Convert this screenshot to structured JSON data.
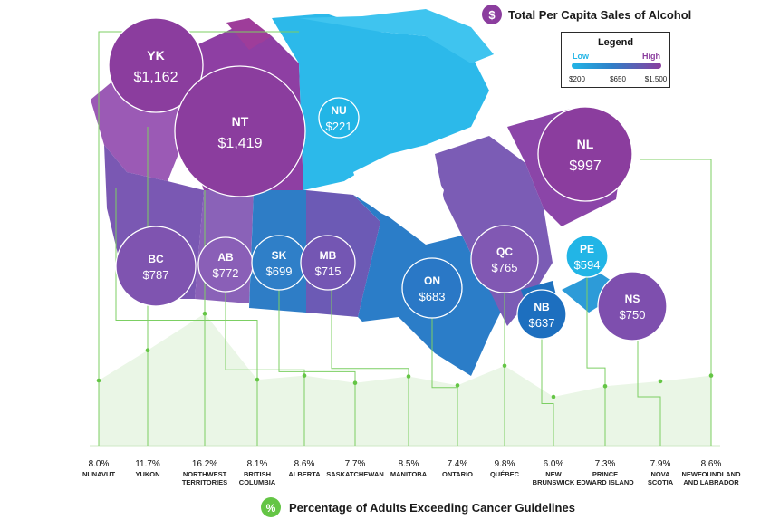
{
  "colors": {
    "low": "#22b5e6",
    "mid": "#2f7fc8",
    "high": "#8b3d9e",
    "green": "#64c545",
    "line_green": "#7ccf63",
    "area_fill": "#eaf6e6"
  },
  "top_title": {
    "icon": "$",
    "text": "Total Per Capita Sales of Alcohol"
  },
  "bottom_title": {
    "icon": "%",
    "text": "Percentage of Adults Exceeding Cancer Guidelines"
  },
  "legend": {
    "title": "Legend",
    "low_label": "Low",
    "high_label": "High",
    "ticks": [
      "$200",
      "$650",
      "$1,500"
    ]
  },
  "chart_data": [
    {
      "type": "bubble-map",
      "title": "Total Per Capita Sales of Alcohol",
      "unit": "$ per capita",
      "regions": [
        {
          "code": "YK",
          "value": 1162,
          "label": "$1,162"
        },
        {
          "code": "NT",
          "value": 1419,
          "label": "$1,419"
        },
        {
          "code": "NU",
          "value": 221,
          "label": "$221"
        },
        {
          "code": "NL",
          "value": 997,
          "label": "$997"
        },
        {
          "code": "BC",
          "value": 787,
          "label": "$787"
        },
        {
          "code": "AB",
          "value": 772,
          "label": "$772"
        },
        {
          "code": "SK",
          "value": 699,
          "label": "$699"
        },
        {
          "code": "MB",
          "value": 715,
          "label": "$715"
        },
        {
          "code": "ON",
          "value": 683,
          "label": "$683"
        },
        {
          "code": "QC",
          "value": 765,
          "label": "$765"
        },
        {
          "code": "PE",
          "value": 594,
          "label": "$594"
        },
        {
          "code": "NB",
          "value": 637,
          "label": "$637"
        },
        {
          "code": "NS",
          "value": 750,
          "label": "$750"
        }
      ]
    },
    {
      "type": "area",
      "title": "Percentage of Adults Exceeding Cancer Guidelines",
      "unit": "%",
      "categories": [
        "NUNAVUT",
        "YUKON",
        "NORTHWEST TERRITORIES",
        "BRITISH COLUMBIA",
        "ALBERTA",
        "SASKATCHEWAN",
        "MANITOBA",
        "ONTARIO",
        "QUÉBEC",
        "NEW BRUNSWICK",
        "PRINCE EDWARD ISLAND",
        "NOVA SCOTIA",
        "NEWFOUNDLAND AND LABRADOR"
      ],
      "category_lines": [
        [
          "NUNAVUT"
        ],
        [
          "YUKON"
        ],
        [
          "NORTHWEST",
          "TERRITORIES"
        ],
        [
          "BRITISH",
          "COLUMBIA"
        ],
        [
          "ALBERTA"
        ],
        [
          "SASKATCHEWAN"
        ],
        [
          "MANITOBA"
        ],
        [
          "ONTARIO"
        ],
        [
          "QUÉBEC"
        ],
        [
          "NEW",
          "BRUNSWICK"
        ],
        [
          "PRINCE",
          "EDWARD ISLAND"
        ],
        [
          "NOVA",
          "SCOTIA"
        ],
        [
          "NEWFOUNDLAND",
          "AND LABRADOR"
        ]
      ],
      "values": [
        8.0,
        11.7,
        16.2,
        8.1,
        8.6,
        7.7,
        8.5,
        7.4,
        9.8,
        6.0,
        7.3,
        7.9,
        8.6
      ],
      "value_labels": [
        "8.0%",
        "11.7%",
        "16.2%",
        "8.1%",
        "8.6%",
        "7.7%",
        "8.5%",
        "7.4%",
        "9.8%",
        "6.0%",
        "7.3%",
        "7.9%",
        "8.6%"
      ],
      "links": [
        "NU",
        "YK",
        "NT",
        "BC",
        "AB",
        "SK",
        "MB",
        "ON",
        "QC",
        "NB",
        "PE",
        "NS",
        "NL"
      ]
    }
  ]
}
